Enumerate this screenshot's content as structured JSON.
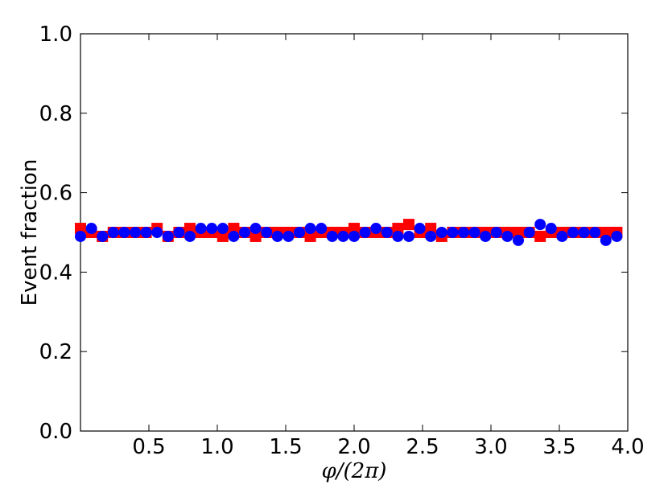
{
  "chart_data": {
    "type": "scatter",
    "xlabel": "φ/(2π)",
    "ylabel": "Event fraction",
    "xlim": [
      0.0,
      4.0
    ],
    "ylim": [
      0.0,
      1.0
    ],
    "x_ticks": [
      0.5,
      1.0,
      1.5,
      2.0,
      2.5,
      3.0,
      3.5,
      4.0
    ],
    "x_tick_labels": [
      "0.5",
      "1.0",
      "1.5",
      "2.0",
      "2.5",
      "3.0",
      "3.5",
      "4.0"
    ],
    "y_ticks": [
      0.0,
      0.2,
      0.4,
      0.6,
      0.8,
      1.0
    ],
    "y_tick_labels": [
      "0.0",
      "0.2",
      "0.4",
      "0.6",
      "0.8",
      "1.0"
    ],
    "grid": false,
    "legend": "none",
    "series": [
      {
        "marker": "square",
        "color": "#ff0000",
        "x": [
          0.0,
          0.08,
          0.16,
          0.24,
          0.32,
          0.4,
          0.48,
          0.56,
          0.64,
          0.72,
          0.8,
          0.88,
          0.96,
          1.04,
          1.12,
          1.2,
          1.28,
          1.36,
          1.44,
          1.52,
          1.6,
          1.68,
          1.76,
          1.84,
          1.92,
          2.0,
          2.08,
          2.16,
          2.24,
          2.32,
          2.4,
          2.48,
          2.56,
          2.64,
          2.72,
          2.8,
          2.88,
          2.96,
          3.04,
          3.12,
          3.2,
          3.28,
          3.36,
          3.44,
          3.52,
          3.6,
          3.68,
          3.76,
          3.84,
          3.92
        ],
        "y": [
          0.51,
          0.5,
          0.49,
          0.5,
          0.5,
          0.5,
          0.5,
          0.51,
          0.49,
          0.5,
          0.51,
          0.5,
          0.5,
          0.49,
          0.51,
          0.5,
          0.49,
          0.5,
          0.5,
          0.5,
          0.5,
          0.49,
          0.5,
          0.5,
          0.5,
          0.51,
          0.5,
          0.5,
          0.5,
          0.51,
          0.52,
          0.5,
          0.51,
          0.49,
          0.5,
          0.5,
          0.5,
          0.5,
          0.5,
          0.5,
          0.5,
          0.5,
          0.49,
          0.5,
          0.5,
          0.5,
          0.5,
          0.5,
          0.5,
          0.5
        ]
      },
      {
        "marker": "circle",
        "color": "#0000ff",
        "x": [
          0.0,
          0.08,
          0.16,
          0.24,
          0.32,
          0.4,
          0.48,
          0.56,
          0.64,
          0.72,
          0.8,
          0.88,
          0.96,
          1.04,
          1.12,
          1.2,
          1.28,
          1.36,
          1.44,
          1.52,
          1.6,
          1.68,
          1.76,
          1.84,
          1.92,
          2.0,
          2.08,
          2.16,
          2.24,
          2.32,
          2.4,
          2.48,
          2.56,
          2.64,
          2.72,
          2.8,
          2.88,
          2.96,
          3.04,
          3.12,
          3.2,
          3.28,
          3.36,
          3.44,
          3.52,
          3.6,
          3.68,
          3.76,
          3.84,
          3.92
        ],
        "y": [
          0.49,
          0.51,
          0.49,
          0.5,
          0.5,
          0.5,
          0.5,
          0.5,
          0.49,
          0.5,
          0.49,
          0.51,
          0.51,
          0.51,
          0.49,
          0.5,
          0.51,
          0.5,
          0.49,
          0.49,
          0.5,
          0.51,
          0.51,
          0.49,
          0.49,
          0.49,
          0.5,
          0.51,
          0.5,
          0.49,
          0.49,
          0.51,
          0.49,
          0.5,
          0.5,
          0.5,
          0.5,
          0.49,
          0.5,
          0.49,
          0.48,
          0.5,
          0.52,
          0.51,
          0.49,
          0.5,
          0.5,
          0.5,
          0.48,
          0.49
        ]
      }
    ]
  }
}
